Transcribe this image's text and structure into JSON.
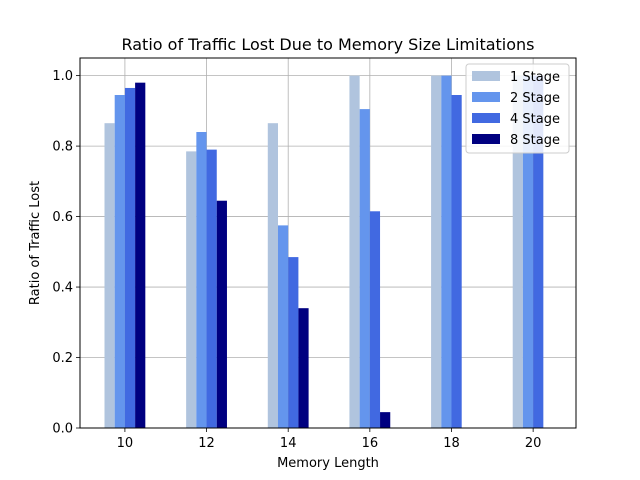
{
  "chart_data": {
    "type": "bar",
    "title": "Ratio of Traffic Lost Due to Memory Size Limitations",
    "xlabel": "Memory Length",
    "ylabel": "Ratio of Traffic Lost",
    "categories": [
      "10",
      "12",
      "14",
      "16",
      "18",
      "20"
    ],
    "x": [
      10,
      12,
      14,
      16,
      18,
      20
    ],
    "xlim": [
      8.9,
      21.05
    ],
    "ylim": [
      0,
      1.05
    ],
    "yticks": [
      "0.0",
      "0.2",
      "0.4",
      "0.6",
      "0.8",
      "1.0"
    ],
    "grid": true,
    "legend_position": "top-right",
    "series": [
      {
        "name": "1 Stage",
        "color": "#b0c4de",
        "values": [
          0.865,
          0.785,
          0.865,
          1.0,
          1.0,
          1.0
        ]
      },
      {
        "name": "2 Stage",
        "color": "#6495ed",
        "values": [
          0.945,
          0.84,
          0.575,
          0.905,
          1.0,
          1.0
        ]
      },
      {
        "name": "4 Stage",
        "color": "#4169e1",
        "values": [
          0.965,
          0.79,
          0.485,
          0.615,
          0.945,
          1.0
        ]
      },
      {
        "name": "8 Stage",
        "color": "#000080",
        "values": [
          0.98,
          0.645,
          0.34,
          0.045,
          0.0,
          0.0
        ]
      }
    ]
  }
}
